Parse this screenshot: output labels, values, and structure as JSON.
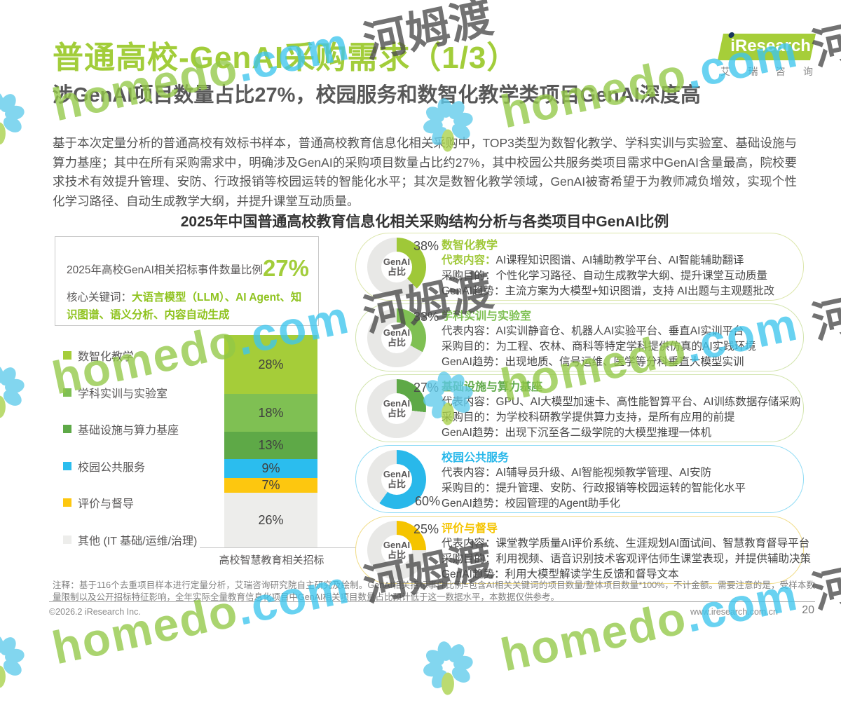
{
  "header": {
    "title": "普通高校-GenAI采购需求（1/3）",
    "subtitle": "涉GenAI项目数量占比27%，校园服务和数智化教学类项目GenAI深度高",
    "intro": "基于本次定量分析的普通高校有效标书样本，普通高校教育信息化相关采购中，TOP3类型为数智化教学、学科实训与实验室、基础设施与算力基座；其中在所有采购需求中，明确涉及GenAI的采购项目数量占比约27%，其中校园公共服务类项目需求中GenAI含量最高，院校要求技术有效提升管理、安防、行政报销等校园运转的智能化水平；其次是数智化教学领域，GenAI被寄希望于为教师减负增效，实现个性化学习路径、自动生成教学大纲，并提升课堂互动质量。",
    "section_title": "2025年中国普通高校教育信息化相关采购结构分析与各类项目中GenAI比例"
  },
  "logo": {
    "brand": "iResearch",
    "caption": "艾瑞咨询"
  },
  "highlight_box": {
    "lead": "2025年高校GenAI相关招标事件数量比例",
    "value": "27%",
    "keywords_label": "核心关键词：",
    "keywords": "大语言模型（LLM）、AI Agent、知识图谱、语义分析、内容自动生成"
  },
  "bar_chart": {
    "xlabel": "高校智慧教育相关招标",
    "categories": [
      "数智化教学",
      "学科实训与实验室",
      "基础设施与算力基座",
      "校园公共服务",
      "评价与督导",
      "其他 (IT 基础/运维/治理)"
    ],
    "values": [
      28,
      18,
      13,
      9,
      7,
      26
    ],
    "colors": [
      "#a5cd39",
      "#7fc053",
      "#5ea947",
      "#2bbdee",
      "#fdc70f",
      "#ededeb"
    ],
    "unit": "%"
  },
  "donut_center": {
    "line1": "GenAI",
    "line2": "占比"
  },
  "labels": {
    "rep": "代表内容：",
    "purpose": "采购目的：",
    "trend": "GenAI趋势："
  },
  "cards": [
    {
      "title": "数智化教学",
      "pct": "38%",
      "value": 38,
      "accent": "#9fc838",
      "border": "#dce6ab",
      "label_pos": "top-right",
      "rep": "AI课程知识图谱、AI辅助教学平台、AI智能辅助翻译",
      "purpose": "个性化学习路径、自动生成教学大纲、提升课堂互动质量",
      "trend": "主流方案为大模型+知识图谱，支持 AI出题与主观题批改"
    },
    {
      "title": "学科实训与实验室",
      "pct": "33%",
      "value": 33,
      "accent": "#7fc053",
      "border": "#d2e4ad",
      "label_pos": "top-right",
      "rep": "AI实训静音仓、机器人AI实验平台、垂直AI实训平台",
      "purpose": "为工程、农林、商科等特定学科提供仿真的AI实践环境",
      "trend": "出现地质、信号运维、医学等分科垂直大模型实训"
    },
    {
      "title": "基础设施与算力基座",
      "pct": "27%",
      "value": 27,
      "accent": "#5ea947",
      "border": "#d2e4ad",
      "label_pos": "top-right",
      "rep": "GPU、AI大模型加速卡、高性能智算平台、AI训练数据存储采购",
      "purpose": "为学校科研教学提供算力支持，是所有应用的前提",
      "trend": "出现下沉至各二级学院的大模型推理一体机"
    },
    {
      "title": "校园公共服务",
      "pct": "60%",
      "value": 60,
      "accent": "#29b8ea",
      "border": "#90dcf5",
      "label_pos": "bottom-right",
      "rep": "AI辅导员升级、AI智能视频教学管理、AI安防",
      "purpose": "提升管理、安防、行政报销等校园运转的智能化水平",
      "trend": "校园管理的Agent助手化"
    },
    {
      "title": "评价与督导",
      "pct": "25%",
      "value": 25,
      "accent": "#f5c400",
      "border": "#f1dc87",
      "label_pos": "top-right",
      "rep": "课堂教学质量AI评价系统、生涯规划AI面试间、智慧教育督导平台",
      "purpose": "利用视频、语音识别技术客观评估师生课堂表现，并提供辅助决策",
      "trend": "利用大模型解读学生反馈和督导文本"
    }
  ],
  "footnote": "注释：基于116个去重项目样本进行定量分析，艾瑞咨询研究院自主研究及绘制。GenAI相关招标事件比例=包含AI相关关键词的项目数量/整体项目数量*100%，不计金额。需要注意的是，受样本数量限制以及公开招标特征影响，全年实际全量教育信息化项目中GenAI相关项目数量占比预计低于这一数据水平，本数据仅供参考。",
  "footer": {
    "copyright": "©2026.2 iResearch Inc.",
    "website": "www.iresearch.com.cn",
    "page": "20"
  },
  "watermark": {
    "brand": "homedo",
    "tld": ".com",
    "cn": "河姆渡"
  },
  "chart_data": [
    {
      "type": "bar",
      "stacked": true,
      "title": "2025年中国普通高校教育信息化相关采购结构分析",
      "categories": [
        "高校智慧教育相关招标"
      ],
      "series": [
        {
          "name": "数智化教学",
          "values": [
            28
          ]
        },
        {
          "name": "学科实训与实验室",
          "values": [
            18
          ]
        },
        {
          "name": "基础设施与算力基座",
          "values": [
            13
          ]
        },
        {
          "name": "校园公共服务",
          "values": [
            9
          ]
        },
        {
          "name": "评价与督导",
          "values": [
            7
          ]
        },
        {
          "name": "其他 (IT 基础/运维/治理)",
          "values": [
            26
          ]
        }
      ],
      "unit": "%",
      "ylim": [
        0,
        100
      ],
      "legend_position": "left",
      "grid": false
    },
    {
      "type": "pie",
      "title": "各类项目中GenAI占比",
      "slices": [
        {
          "label": "数智化教学",
          "value": 38
        },
        {
          "label": "学科实训与实验室",
          "value": 33
        },
        {
          "label": "基础设施与算力基座",
          "value": 27
        },
        {
          "label": "校园公共服务",
          "value": 60
        },
        {
          "label": "评价与督导",
          "value": 25
        }
      ],
      "unit": "%"
    }
  ]
}
